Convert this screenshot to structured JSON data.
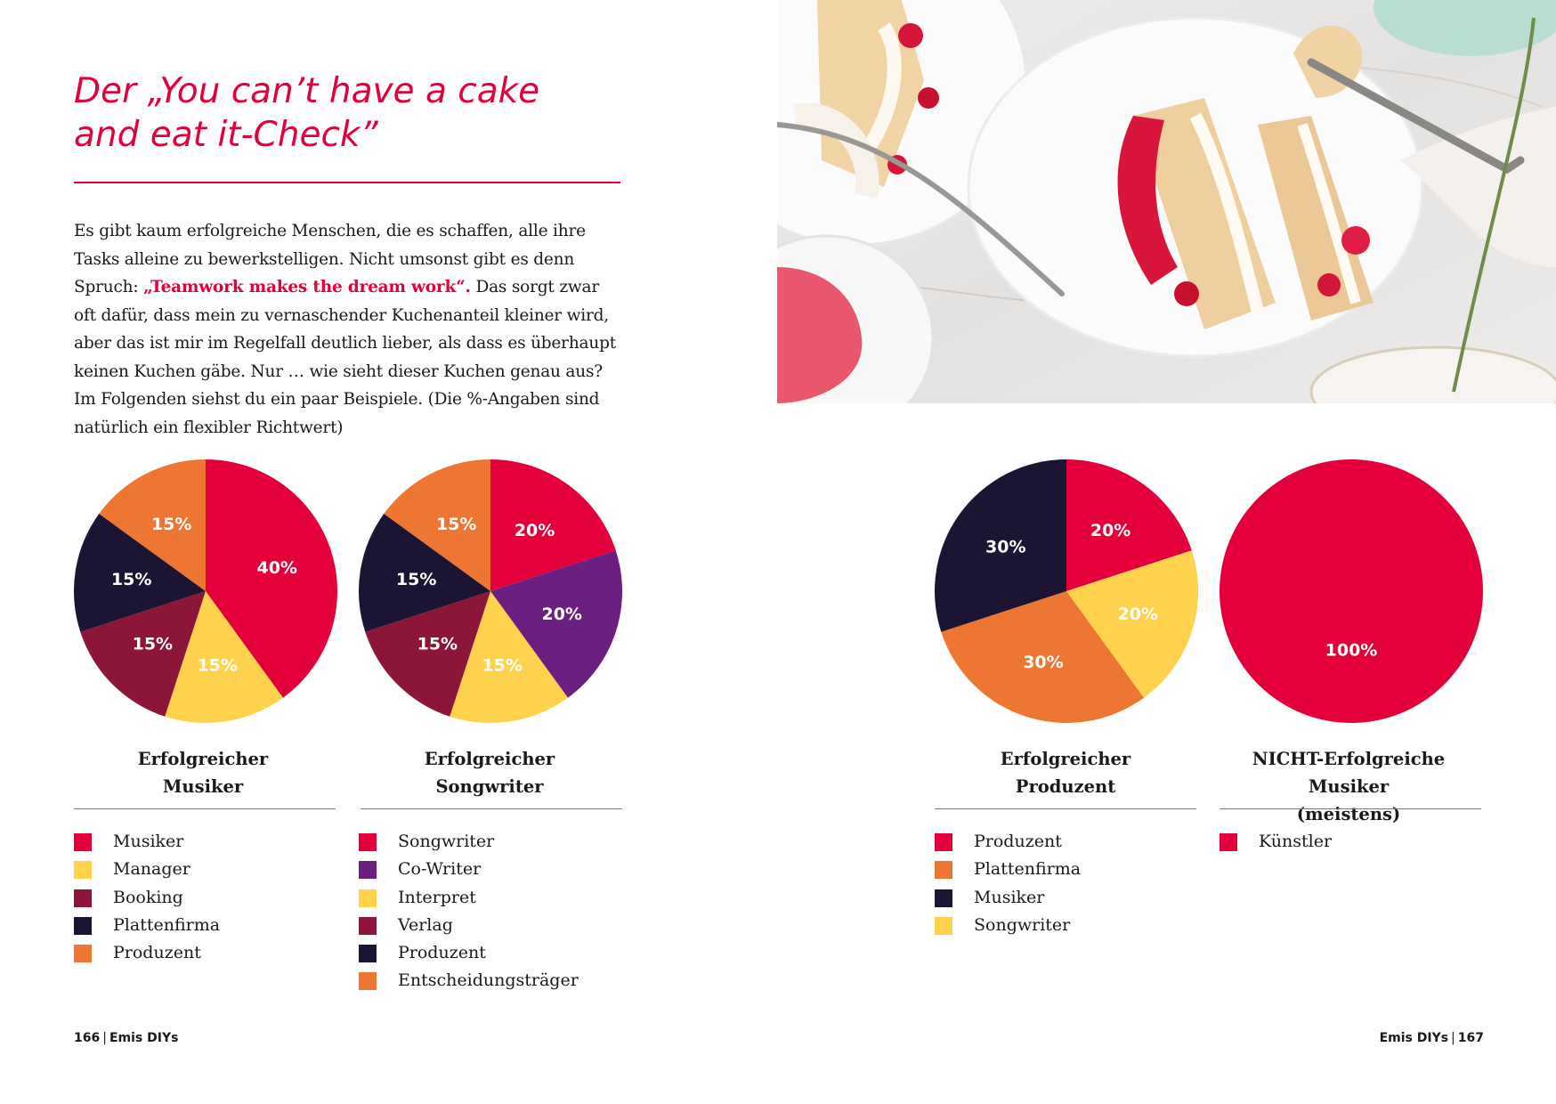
{
  "heading": {
    "line1": "Der „You can’t have a cake",
    "line2": "and eat it-Check”"
  },
  "intro": {
    "before": "Es gibt kaum erfolgreiche Menschen, die es schaffen, alle ihre Tasks alleine zu bewerkstelligen. Nicht umsonst gibt es denn Spruch: ",
    "highlight": "„Teamwork makes the dream work“.",
    "after": " Das sorgt zwar oft dafür, dass mein zu vernaschender Kuchenanteil kleiner wird, aber das ist mir im Regelfall deutlich lieber, als dass es überhaupt keinen Kuchen gäbe. Nur … wie sieht dieser Kuchen genau aus? Im Folgenden siehst du ein paar Beispiele. (Die %-Angaben sind natürlich ein flexibler Richtwert)"
  },
  "colors": {
    "red": "#e3003a",
    "purple": "#6b1f80",
    "yellow": "#ffd24d",
    "maroon": "#8c1538",
    "navy": "#1c1433",
    "orange": "#ee7633"
  },
  "chart_data": [
    {
      "type": "pie",
      "title_lines": [
        "Erfolgreicher",
        "Musiker"
      ],
      "categories": [
        "Musiker",
        "Manager",
        "Booking",
        "Plattenfirma",
        "Produzent"
      ],
      "legend_colors": [
        "#e3003a",
        "#ffd24d",
        "#8c1538",
        "#1c1433",
        "#ee7633"
      ],
      "slices": [
        {
          "label": "40%",
          "value": 40,
          "color": "#e3003a"
        },
        {
          "label": "15%",
          "value": 15,
          "color": "#ffd24d"
        },
        {
          "label": "15%",
          "value": 15,
          "color": "#8c1538"
        },
        {
          "label": "15%",
          "value": 15,
          "color": "#1c1433"
        },
        {
          "label": "15%",
          "value": 15,
          "color": "#ee7633"
        }
      ]
    },
    {
      "type": "pie",
      "title_lines": [
        "Erfolgreicher",
        "Songwriter"
      ],
      "categories": [
        "Songwriter",
        "Co-Writer",
        "Interpret",
        "Verlag",
        "Produzent",
        "Entscheidungsträger"
      ],
      "legend_colors": [
        "#e3003a",
        "#6b1f80",
        "#ffd24d",
        "#8c1538",
        "#1c1433",
        "#ee7633"
      ],
      "slices": [
        {
          "label": "20%",
          "value": 20,
          "color": "#e3003a"
        },
        {
          "label": "20%",
          "value": 20,
          "color": "#6b1f80"
        },
        {
          "label": "15%",
          "value": 15,
          "color": "#ffd24d"
        },
        {
          "label": "15%",
          "value": 15,
          "color": "#8c1538"
        },
        {
          "label": "15%",
          "value": 15,
          "color": "#1c1433"
        },
        {
          "label": "15%",
          "value": 15,
          "color": "#ee7633"
        }
      ]
    },
    {
      "type": "pie",
      "title_lines": [
        "Erfolgreicher",
        "Produzent"
      ],
      "categories": [
        "Produzent",
        "Plattenfirma",
        "Musiker",
        "Songwriter"
      ],
      "legend_colors": [
        "#e3003a",
        "#ee7633",
        "#1c1433",
        "#ffd24d"
      ],
      "slices": [
        {
          "label": "20%",
          "value": 20,
          "color": "#e3003a"
        },
        {
          "label": "20%",
          "value": 20,
          "color": "#ffd24d"
        },
        {
          "label": "30%",
          "value": 30,
          "color": "#ee7633"
        },
        {
          "label": "30%",
          "value": 30,
          "color": "#1c1433"
        }
      ]
    },
    {
      "type": "pie",
      "title_lines": [
        "NICHT-Erfolgreiche Musiker",
        "(meistens)"
      ],
      "categories": [
        "Künstler"
      ],
      "legend_colors": [
        "#e3003a"
      ],
      "slices": [
        {
          "label": "100%",
          "value": 100,
          "color": "#e3003a"
        }
      ]
    }
  ],
  "footer": {
    "left_page": "166",
    "left_book": "Emis DIYs",
    "right_book": "Emis DIYs",
    "right_page": "167"
  }
}
